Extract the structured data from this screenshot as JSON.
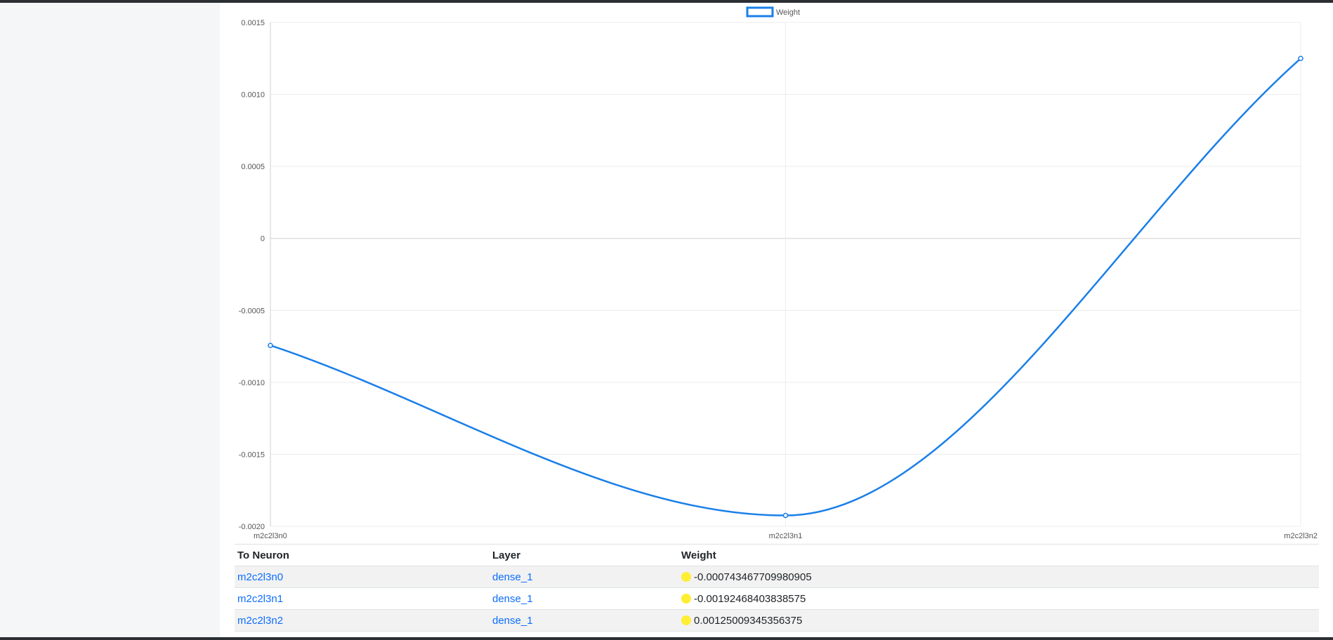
{
  "chart_data": {
    "type": "line",
    "categories": [
      "m2c2l3n0",
      "m2c2l3n1",
      "m2c2l3n2"
    ],
    "series": [
      {
        "name": "Weight",
        "values": [
          -0.000743467709980905,
          -0.00192468403838575,
          0.00125009345356375
        ],
        "color": "#1a7fe8"
      }
    ],
    "ylim": [
      -0.002,
      0.0015
    ],
    "yticks": [
      "0.0015",
      "0.0010",
      "0.0005",
      "0",
      "-0.0005",
      "-0.0010",
      "-0.0015",
      "-0.0020"
    ],
    "grid": true,
    "legend": "top-center"
  },
  "table": {
    "headers": {
      "to_neuron": "To Neuron",
      "layer": "Layer",
      "weight": "Weight"
    },
    "rows": [
      {
        "to_neuron": "m2c2l3n0",
        "layer": "dense_1",
        "weight": "-0.000743467709980905",
        "dot_color": "#ffee33"
      },
      {
        "to_neuron": "m2c2l3n1",
        "layer": "dense_1",
        "weight": "-0.00192468403838575",
        "dot_color": "#ffee33"
      },
      {
        "to_neuron": "m2c2l3n2",
        "layer": "dense_1",
        "weight": "0.00125009345356375",
        "dot_color": "#ffee33"
      }
    ]
  }
}
